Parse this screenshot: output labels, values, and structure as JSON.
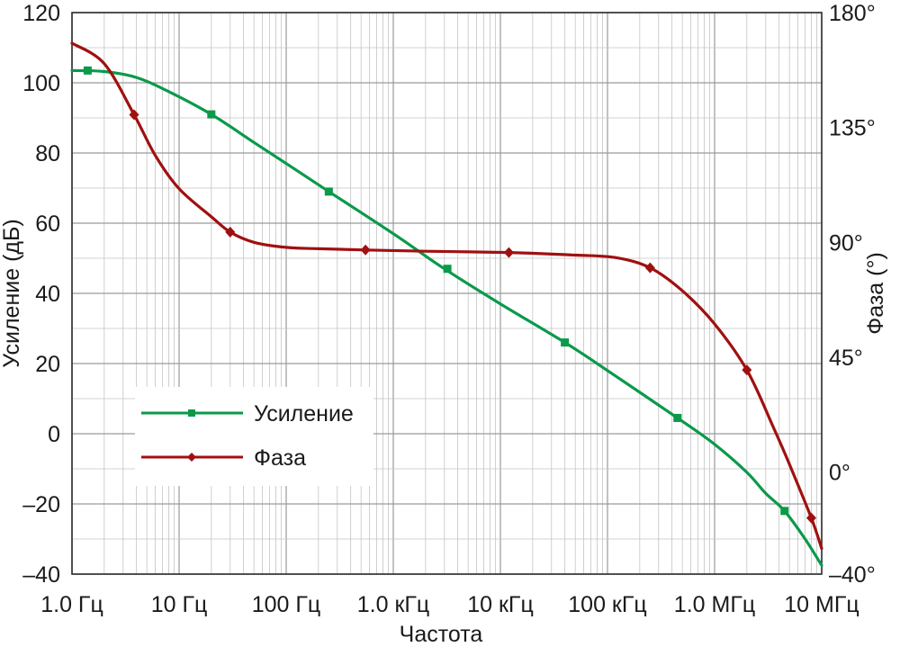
{
  "chart_data": {
    "type": "line",
    "title": "",
    "xlabel": "Частота",
    "ylabel_left": "Усиление (дБ)",
    "ylabel_right": "Фаза (°)",
    "x_scale": "log",
    "xlim": [
      1,
      10000000
    ],
    "ylim_left": [
      -40,
      120
    ],
    "ylim_right": [
      -40,
      180
    ],
    "grid": true,
    "legend_position": "bottom-left",
    "x_ticks": [
      {
        "value": 1,
        "label": "1.0 Гц"
      },
      {
        "value": 10,
        "label": "10 Гц"
      },
      {
        "value": 100,
        "label": "100 Гц"
      },
      {
        "value": 1000,
        "label": "1.0 кГц"
      },
      {
        "value": 10000,
        "label": "10 кГц"
      },
      {
        "value": 100000,
        "label": "100 кГц"
      },
      {
        "value": 1000000,
        "label": "1.0 МГц"
      },
      {
        "value": 10000000,
        "label": "10 МГц"
      }
    ],
    "y_ticks_left": [
      {
        "value": 120,
        "label": "120"
      },
      {
        "value": 100,
        "label": "100"
      },
      {
        "value": 80,
        "label": "80"
      },
      {
        "value": 60,
        "label": "60"
      },
      {
        "value": 40,
        "label": "40"
      },
      {
        "value": 20,
        "label": "20"
      },
      {
        "value": 0,
        "label": "0"
      },
      {
        "value": -20,
        "label": "–20"
      },
      {
        "value": -40,
        "label": "–40"
      }
    ],
    "y_ticks_right": [
      {
        "value": 180,
        "label": "180°"
      },
      {
        "value": 135,
        "label": "135°"
      },
      {
        "value": 90,
        "label": "90°"
      },
      {
        "value": 45,
        "label": "45°"
      },
      {
        "value": 0,
        "label": "0°"
      },
      {
        "value": -40,
        "label": "–40°"
      }
    ],
    "series": [
      {
        "name": "Усиление",
        "axis": "left",
        "color": "#0a9a4a",
        "marker": "square",
        "curve": [
          [
            1,
            103.5
          ],
          [
            2,
            103.2
          ],
          [
            4,
            101.5
          ],
          [
            8,
            97.5
          ],
          [
            20,
            91
          ],
          [
            50,
            83
          ],
          [
            100,
            77
          ],
          [
            250,
            69
          ],
          [
            1000,
            57
          ],
          [
            3000,
            47
          ],
          [
            10000,
            37
          ],
          [
            40000,
            26
          ],
          [
            100000,
            18
          ],
          [
            450000,
            4.5
          ],
          [
            1000000,
            -3
          ],
          [
            2000000,
            -11
          ],
          [
            3000000,
            -17
          ],
          [
            4500000,
            -22
          ],
          [
            7000000,
            -30
          ],
          [
            10000000,
            -37.5
          ]
        ],
        "markers": [
          [
            1.4,
            103.5
          ],
          [
            20,
            91
          ],
          [
            250,
            69
          ],
          [
            3200,
            47
          ],
          [
            40000,
            26
          ],
          [
            450000,
            4.5
          ],
          [
            4500000,
            -22
          ]
        ]
      },
      {
        "name": "Фаза",
        "axis": "right",
        "color": "#a01010",
        "marker": "diamond",
        "curve": [
          [
            1,
            168
          ],
          [
            2,
            160
          ],
          [
            3.8,
            140
          ],
          [
            6,
            124
          ],
          [
            10,
            111
          ],
          [
            20,
            100
          ],
          [
            30,
            94
          ],
          [
            50,
            90
          ],
          [
            100,
            88
          ],
          [
            200,
            87.5
          ],
          [
            550,
            87
          ],
          [
            2000,
            86.5
          ],
          [
            12000,
            86
          ],
          [
            50000,
            85
          ],
          [
            120000,
            84
          ],
          [
            250000,
            80
          ],
          [
            500000,
            71
          ],
          [
            1000000,
            58
          ],
          [
            2000000,
            40
          ],
          [
            3500000,
            18
          ],
          [
            5000000,
            3
          ],
          [
            8000000,
            -18
          ],
          [
            10000000,
            -30
          ]
        ],
        "markers": [
          [
            3.8,
            140
          ],
          [
            30,
            94
          ],
          [
            550,
            87
          ],
          [
            12000,
            86
          ],
          [
            250000,
            80
          ],
          [
            2000000,
            40
          ],
          [
            8000000,
            -18
          ]
        ]
      }
    ]
  }
}
